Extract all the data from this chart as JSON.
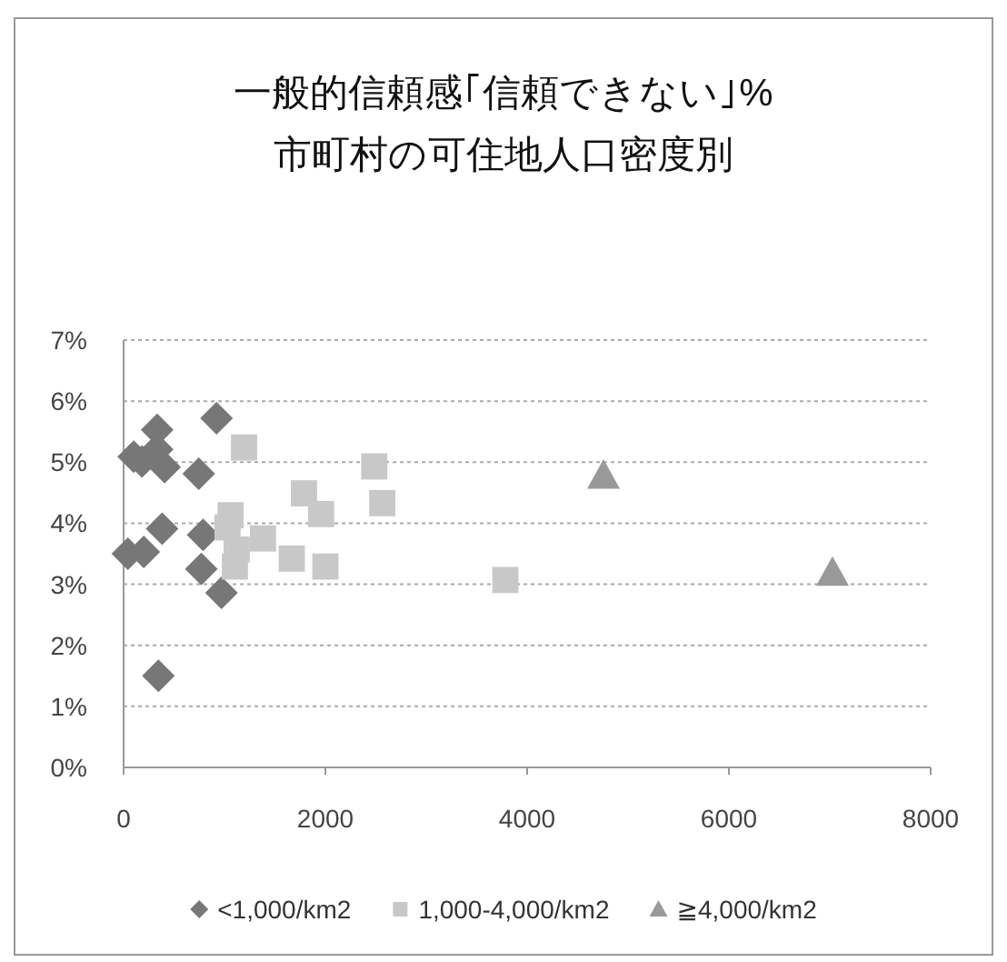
{
  "chart_data": {
    "type": "scatter",
    "title": "一般的信頼感｢信頼できない｣%",
    "subtitle": "市町村の可住地人口密度別",
    "xlim": [
      0,
      8000
    ],
    "xticks": [
      0,
      2000,
      4000,
      6000,
      8000
    ],
    "ylim": [
      0,
      7
    ],
    "yticks": [
      {
        "value": 0,
        "label": "0%"
      },
      {
        "value": 1,
        "label": "1%"
      },
      {
        "value": 2,
        "label": "2%"
      },
      {
        "value": 3,
        "label": "3%"
      },
      {
        "value": 4,
        "label": "4%"
      },
      {
        "value": 5,
        "label": "5%"
      },
      {
        "value": 6,
        "label": "6%"
      },
      {
        "value": 7,
        "label": "7%"
      }
    ],
    "grid": "y",
    "legend": "bottom",
    "series": [
      {
        "name": "<1,000/km2",
        "color": "#777777",
        "marker": "diamond",
        "x": [
          921,
          333,
          100,
          333,
          406,
          745,
          382,
          788,
          42,
          200,
          770,
          970,
          345,
          182
        ],
        "values": [
          5.72,
          5.53,
          5.09,
          5.21,
          4.92,
          4.81,
          3.91,
          3.81,
          3.5,
          3.53,
          3.25,
          2.86,
          1.5,
          5.01
        ]
      },
      {
        "name": "1,000-4,000/km2",
        "color": "#c8c8c8",
        "marker": "square",
        "x": [
          1194,
          1788,
          1958,
          2485,
          2564,
          1061,
          1382,
          1121,
          1103,
          1667,
          2000,
          1030,
          3784
        ],
        "values": [
          5.24,
          4.49,
          4.15,
          4.93,
          4.33,
          4.13,
          3.75,
          3.57,
          3.29,
          3.42,
          3.29,
          3.93,
          3.07
        ]
      },
      {
        "name": "≧4,000/km2",
        "color": "#999999",
        "marker": "triangle",
        "x": [
          4757,
          7027
        ],
        "values": [
          4.78,
          3.19
        ]
      }
    ]
  }
}
